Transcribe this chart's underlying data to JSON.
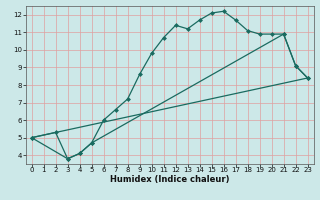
{
  "title": "",
  "xlabel": "Humidex (Indice chaleur)",
  "bg_color": "#cce8e8",
  "grid_color": "#e8c8c8",
  "line_color": "#1a6b60",
  "xlim": [
    -0.5,
    23.5
  ],
  "ylim": [
    3.5,
    12.5
  ],
  "xticks": [
    0,
    1,
    2,
    3,
    4,
    5,
    6,
    7,
    8,
    9,
    10,
    11,
    12,
    13,
    14,
    15,
    16,
    17,
    18,
    19,
    20,
    21,
    22,
    23
  ],
  "yticks": [
    4,
    5,
    6,
    7,
    8,
    9,
    10,
    11,
    12
  ],
  "line1_x": [
    0,
    2,
    3,
    4,
    5,
    6,
    7,
    8,
    9,
    10,
    11,
    12,
    13,
    14,
    15,
    16,
    17,
    18,
    19,
    20,
    21,
    22,
    23
  ],
  "line1_y": [
    5.0,
    5.3,
    3.8,
    4.1,
    4.7,
    6.0,
    6.6,
    7.2,
    8.6,
    9.8,
    10.7,
    11.4,
    11.2,
    11.7,
    12.1,
    12.2,
    11.7,
    11.1,
    10.9,
    10.9,
    10.9,
    9.1,
    8.4
  ],
  "line2_x": [
    0,
    3,
    4,
    5,
    21,
    22,
    23
  ],
  "line2_y": [
    5.0,
    3.8,
    4.1,
    4.7,
    10.9,
    9.1,
    8.4
  ],
  "line3_x": [
    0,
    23
  ],
  "line3_y": [
    5.0,
    8.4
  ],
  "tick_fontsize": 5.0,
  "xlabel_fontsize": 6.0,
  "marker_size": 2.5,
  "linewidth": 0.9
}
